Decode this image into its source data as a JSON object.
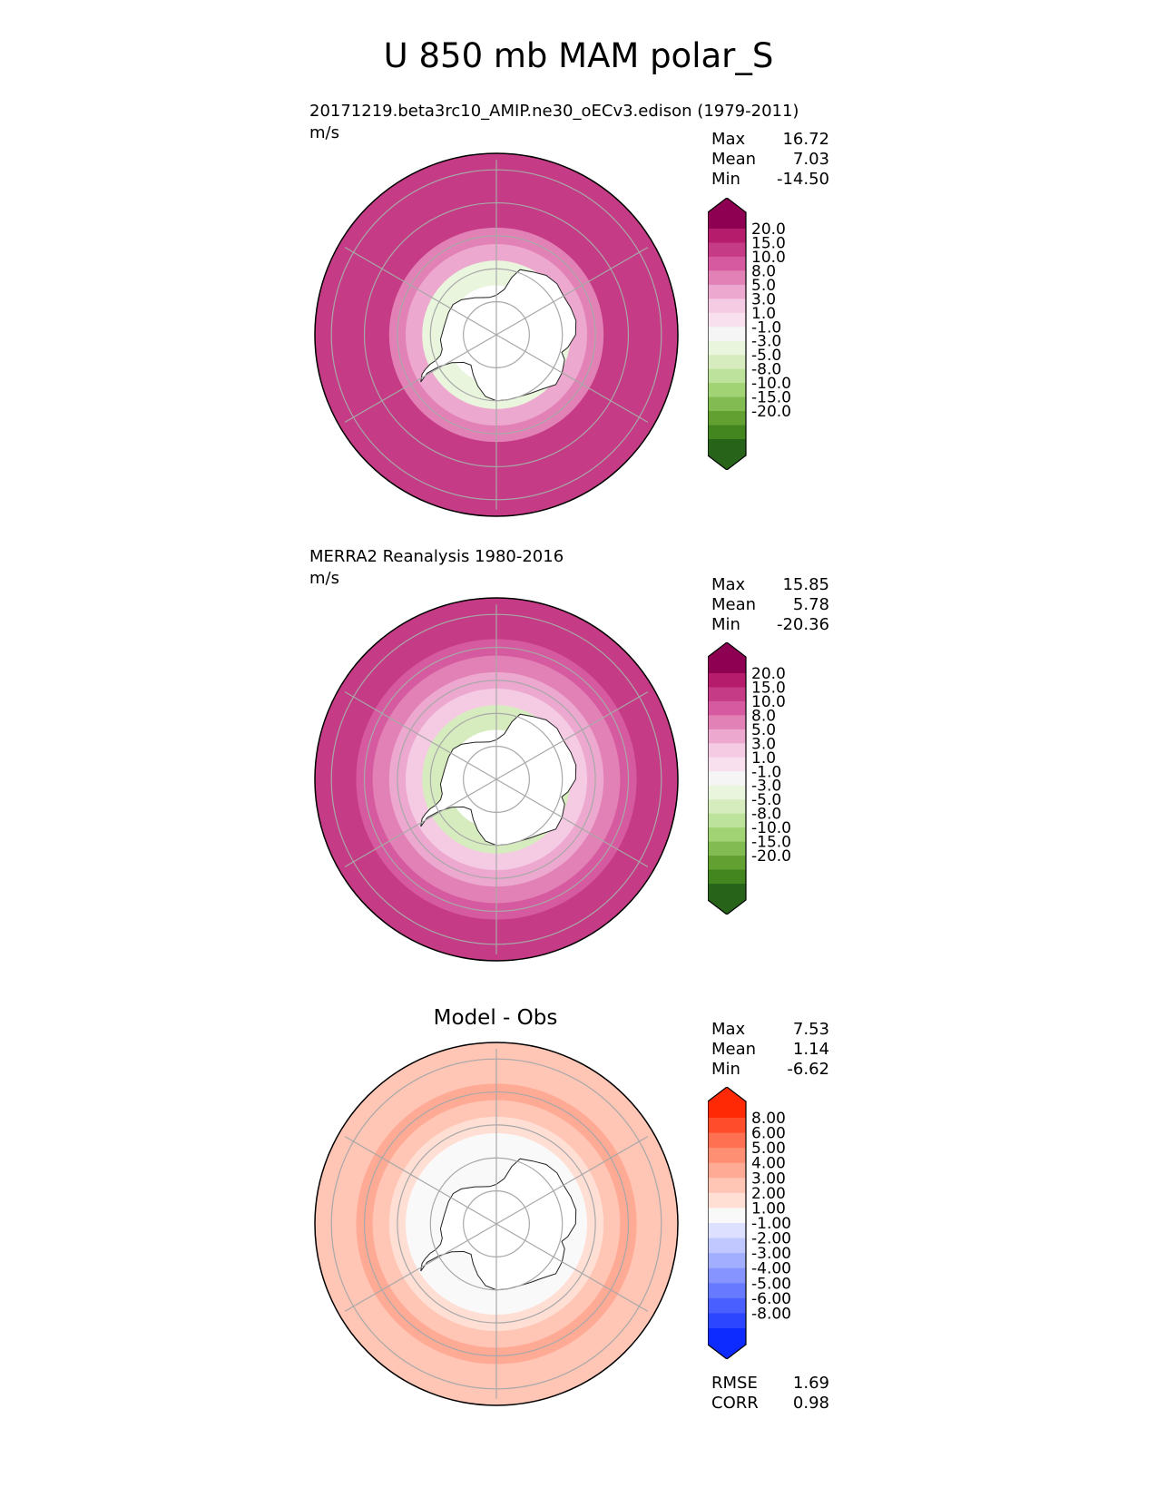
{
  "title": "U 850 mb MAM polar_S",
  "chart_data": [
    {
      "type": "heatmap",
      "panel": "test",
      "title": "20171219.beta3rc10_AMIP.ne30_oECv3.edison (1979-2011)",
      "units": "m/s",
      "stats": [
        {
          "label": "Max",
          "value": "16.72"
        },
        {
          "label": "Mean",
          "value": "7.03"
        },
        {
          "label": "Min",
          "value": "-14.50"
        }
      ],
      "colorbar": {
        "labels": [
          "20.0",
          "15.0",
          "10.0",
          "8.0",
          "5.0",
          "3.0",
          "1.0",
          "-1.0",
          "-3.0",
          "-5.0",
          "-8.0",
          "-10.0",
          "-15.0",
          "-20.0"
        ],
        "colors": [
          "#8e0152",
          "#b51c6b",
          "#c53b86",
          "#d65a9f",
          "#e281b6",
          "#eda8cf",
          "#f5cae3",
          "#f9e0ef",
          "#f5f5f5",
          "#eaf5dd",
          "#d7ecbe",
          "#bde29b",
          "#a1d375",
          "#81bb51",
          "#62a031",
          "#43861f",
          "#276419"
        ]
      },
      "wind_rings_ms": [
        {
          "lat": -40,
          "value": 12
        },
        {
          "lat": -45,
          "value": 14
        },
        {
          "lat": -50,
          "value": 13
        },
        {
          "lat": -55,
          "value": 10
        },
        {
          "lat": -60,
          "value": 7
        },
        {
          "lat": -65,
          "value": 3
        },
        {
          "lat": -70,
          "value": -5
        }
      ]
    },
    {
      "type": "heatmap",
      "panel": "reference",
      "title": "MERRA2 Reanalysis 1980-2016",
      "units": "m/s",
      "stats": [
        {
          "label": "Max",
          "value": "15.85"
        },
        {
          "label": "Mean",
          "value": "5.78"
        },
        {
          "label": "Min",
          "value": "-20.36"
        }
      ],
      "colorbar": {
        "labels": [
          "20.0",
          "15.0",
          "10.0",
          "8.0",
          "5.0",
          "3.0",
          "1.0",
          "-1.0",
          "-3.0",
          "-5.0",
          "-8.0",
          "-10.0",
          "-15.0",
          "-20.0"
        ],
        "colors": [
          "#8e0152",
          "#b51c6b",
          "#c53b86",
          "#d65a9f",
          "#e281b6",
          "#eda8cf",
          "#f5cae3",
          "#f9e0ef",
          "#f5f5f5",
          "#eaf5dd",
          "#d7ecbe",
          "#bde29b",
          "#a1d375",
          "#81bb51",
          "#62a031",
          "#43861f",
          "#276419"
        ]
      },
      "wind_rings_ms": [
        {
          "lat": -40,
          "value": 10
        },
        {
          "lat": -45,
          "value": 12
        },
        {
          "lat": -50,
          "value": 9
        },
        {
          "lat": -55,
          "value": 7
        },
        {
          "lat": -60,
          "value": 4
        },
        {
          "lat": -65,
          "value": 1
        },
        {
          "lat": -70,
          "value": -8
        }
      ]
    },
    {
      "type": "heatmap",
      "panel": "difference",
      "title": "Model - Obs",
      "units": "",
      "stats": [
        {
          "label": "Max",
          "value": "7.53"
        },
        {
          "label": "Mean",
          "value": "1.14"
        },
        {
          "label": "Min",
          "value": "-6.62"
        }
      ],
      "metrics": [
        {
          "label": "RMSE",
          "value": "1.69"
        },
        {
          "label": "CORR",
          "value": "0.98"
        }
      ],
      "colorbar": {
        "labels": [
          "8.00",
          "6.00",
          "5.00",
          "4.00",
          "3.00",
          "2.00",
          "1.00",
          "-1.00",
          "-2.00",
          "-3.00",
          "-4.00",
          "-5.00",
          "-6.00",
          "-8.00"
        ],
        "colors": [
          "#ff2a05",
          "#ff4c2a",
          "#ff7052",
          "#ff8f72",
          "#ffaa95",
          "#ffc5b5",
          "#ffded4",
          "#f9f9f9",
          "#dde1ff",
          "#c0c8ff",
          "#a2aeff",
          "#8594ff",
          "#677aff",
          "#4a5fff",
          "#2c45ff",
          "#0e2bff"
        ]
      },
      "wind_rings_ms": [
        {
          "lat": -40,
          "value": 2.5
        },
        {
          "lat": -45,
          "value": 2
        },
        {
          "lat": -50,
          "value": 3
        },
        {
          "lat": -55,
          "value": 2
        },
        {
          "lat": -60,
          "value": 1.5
        },
        {
          "lat": -65,
          "value": 0.5
        },
        {
          "lat": -70,
          "value": 0
        }
      ]
    }
  ]
}
